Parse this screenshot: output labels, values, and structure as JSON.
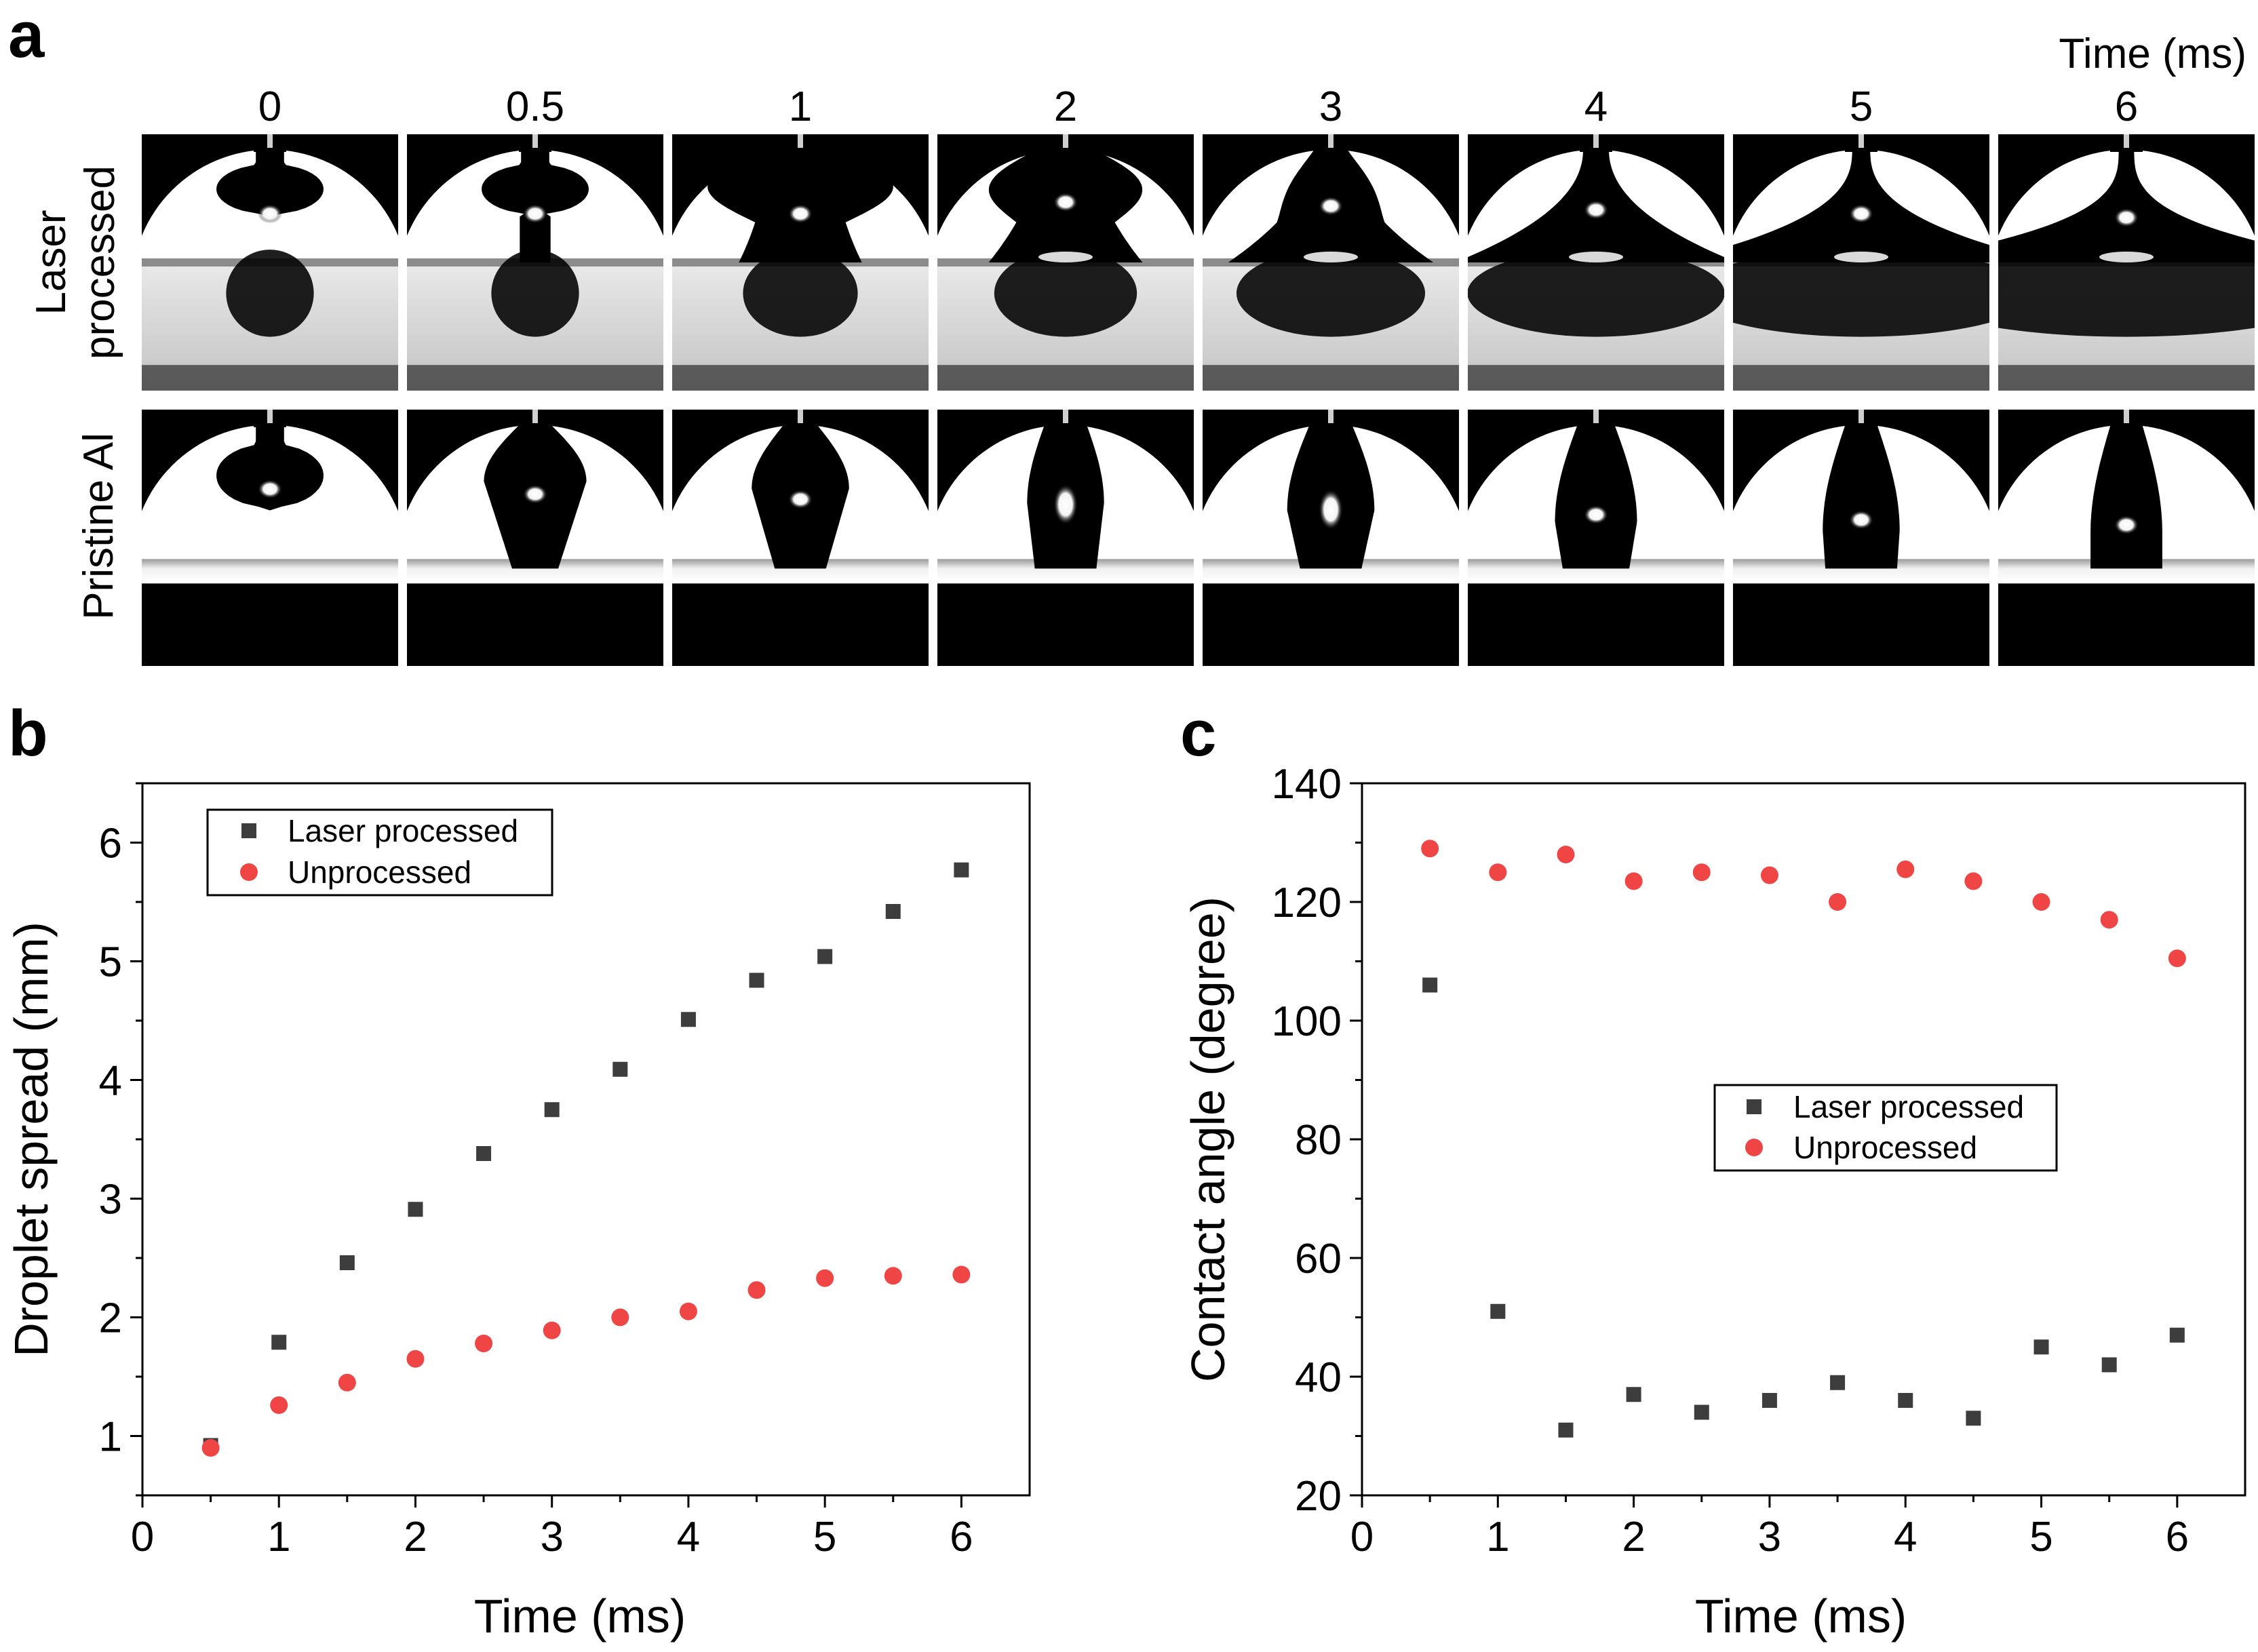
{
  "panel_a": {
    "letter": "a",
    "time_unit_label": "Time (ms)",
    "time_labels": [
      "0",
      "0.5",
      "1",
      "2",
      "3",
      "4",
      "5",
      "6"
    ],
    "row_labels": {
      "laser_line1": "Laser",
      "laser_line2": "processed",
      "pristine": "Pristine Al"
    }
  },
  "panel_b": {
    "letter": "b"
  },
  "panel_c": {
    "letter": "c"
  },
  "colors": {
    "laser": "#3d3d3d",
    "unprocessed": "#f04545"
  },
  "chart_data": [
    {
      "id": "b",
      "type": "scatter",
      "xlabel": "Time (ms)",
      "ylabel": "Droplet spread (mm)",
      "xlim": [
        0,
        6.5
      ],
      "ylim": [
        0.5,
        6.5
      ],
      "xticks": [
        0,
        1,
        2,
        3,
        4,
        5,
        6
      ],
      "yticks": [
        1,
        2,
        3,
        4,
        5,
        6
      ],
      "legend": "top-left",
      "series": [
        {
          "name": "Laser processed",
          "marker": "square",
          "x": [
            0.5,
            1,
            1.5,
            2,
            2.5,
            3,
            3.5,
            4,
            4.5,
            5,
            5.5,
            6
          ],
          "y": [
            0.92,
            1.79,
            2.46,
            2.91,
            3.38,
            3.75,
            4.09,
            4.51,
            4.84,
            5.04,
            5.42,
            5.77
          ]
        },
        {
          "name": "Unprocessed",
          "marker": "circle",
          "x": [
            0.5,
            1,
            1.5,
            2,
            2.5,
            3,
            3.5,
            4,
            4.5,
            5,
            5.5,
            6
          ],
          "y": [
            0.9,
            1.26,
            1.45,
            1.65,
            1.78,
            1.89,
            2.0,
            2.05,
            2.23,
            2.33,
            2.35,
            2.36
          ]
        }
      ]
    },
    {
      "id": "c",
      "type": "scatter",
      "xlabel": "Time (ms)",
      "ylabel": "Contact angle (degree)",
      "xlim": [
        0,
        6.5
      ],
      "ylim": [
        20,
        140
      ],
      "xticks": [
        0,
        1,
        2,
        3,
        4,
        5,
        6
      ],
      "yticks": [
        20,
        40,
        60,
        80,
        100,
        120,
        140
      ],
      "legend": "center-right",
      "series": [
        {
          "name": "Laser processed",
          "marker": "square",
          "x": [
            0.5,
            1,
            1.5,
            2,
            2.5,
            3,
            3.5,
            4,
            4.5,
            5,
            5.5,
            6
          ],
          "y": [
            106,
            51,
            31,
            37,
            34,
            36,
            39,
            36,
            33,
            45,
            42,
            47
          ]
        },
        {
          "name": "Unprocessed",
          "marker": "circle",
          "x": [
            0.5,
            1,
            1.5,
            2,
            2.5,
            3,
            3.5,
            4,
            4.5,
            5,
            5.5,
            6
          ],
          "y": [
            129,
            125,
            128,
            123.5,
            125,
            124.5,
            120,
            125.5,
            123.5,
            120,
            117,
            110.5
          ]
        }
      ]
    }
  ]
}
